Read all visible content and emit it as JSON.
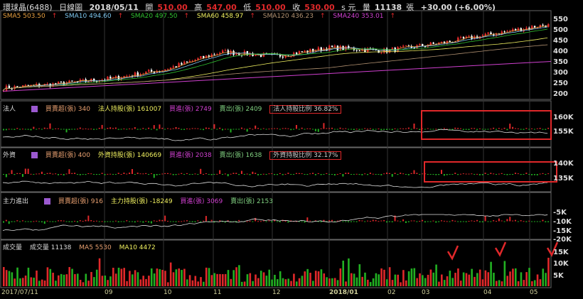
{
  "header": {
    "stock": "環球晶(6488)",
    "period": "日線圖",
    "date": "2018/05/11",
    "open_label": "開",
    "open": "510.00",
    "high_label": "高",
    "high": "547.00",
    "low_label": "低",
    "low": "510.00",
    "close_label": "收",
    "close": "530.00",
    "unit": "s 元",
    "vol_label": "量",
    "volume": "11138",
    "vol_unit": "張",
    "change": "+30.00 (+6.00%)"
  },
  "ma": [
    {
      "label": "SMA5 503.50",
      "color": "#e8a040"
    },
    {
      "label": "SMA10 494.60",
      "color": "#7ec8f0"
    },
    {
      "label": "SMA20 497.50",
      "color": "#30c030"
    },
    {
      "label": "SMA60 458.97",
      "color": "#f0f060"
    },
    {
      "label": "SMA120 436.23",
      "color": "#b09070"
    },
    {
      "label": "SMA240 353.01",
      "color": "#d040d0"
    }
  ],
  "inst": {
    "title": "法人",
    "net": "買賣超(張) 340",
    "hold": "法人持股(張) 161007",
    "buy": "買進(張) 2749",
    "sell": "賣出(張) 2409",
    "ratio": "法人持股比例 36.82%",
    "ticks": [
      "160K",
      "155K"
    ]
  },
  "foreign": {
    "title": "外資",
    "net": "買賣超(張) 400",
    "hold": "外資持股(張) 140669",
    "buy": "買進(張) 2038",
    "sell": "賣出(張) 1638",
    "ratio": "外資持股比例 32.17%",
    "ticks": [
      "140K",
      "135K"
    ]
  },
  "major": {
    "title": "主力進出",
    "net": "買賣超(張) 916",
    "hold": "主力持股(張) -18249",
    "buy": "買進(張) 3069",
    "sell": "賣出(張) 2153",
    "ticks": [
      "-5K",
      "-10K",
      "-15K",
      "-20K"
    ]
  },
  "vol": {
    "title": "成交量",
    "vol": "成交量 11138",
    "ma5": "MA5 5530",
    "ma10": "MA10 4472",
    "unit": "張",
    "ticks": [
      "15K",
      "10K",
      "5K"
    ]
  },
  "colors": {
    "up": "#e0282a",
    "down": "#22b022",
    "flat": "#cccccc"
  },
  "chart_data": {
    "type": "candlestick",
    "price_ticks": [
      550,
      500,
      450,
      400,
      350,
      300,
      250,
      200
    ],
    "ylim": [
      190,
      560
    ],
    "x_labels": [
      "2017/07/11",
      "09",
      "10",
      "11",
      "12",
      "2018/01",
      "02",
      "03",
      "04",
      "05"
    ],
    "approx_close_by_month": [
      {
        "m": "2017/07",
        "close": 230
      },
      {
        "m": "2017/08",
        "close": 250
      },
      {
        "m": "2017/09",
        "close": 275
      },
      {
        "m": "2017/10",
        "close": 320
      },
      {
        "m": "2017/11",
        "close": 400
      },
      {
        "m": "2017/12",
        "close": 380
      },
      {
        "m": "2018/01",
        "close": 420
      },
      {
        "m": "2018/02",
        "close": 405
      },
      {
        "m": "2018/03",
        "close": 440
      },
      {
        "m": "2018/04",
        "close": 485
      },
      {
        "m": "2018/05",
        "close": 530
      }
    ]
  }
}
